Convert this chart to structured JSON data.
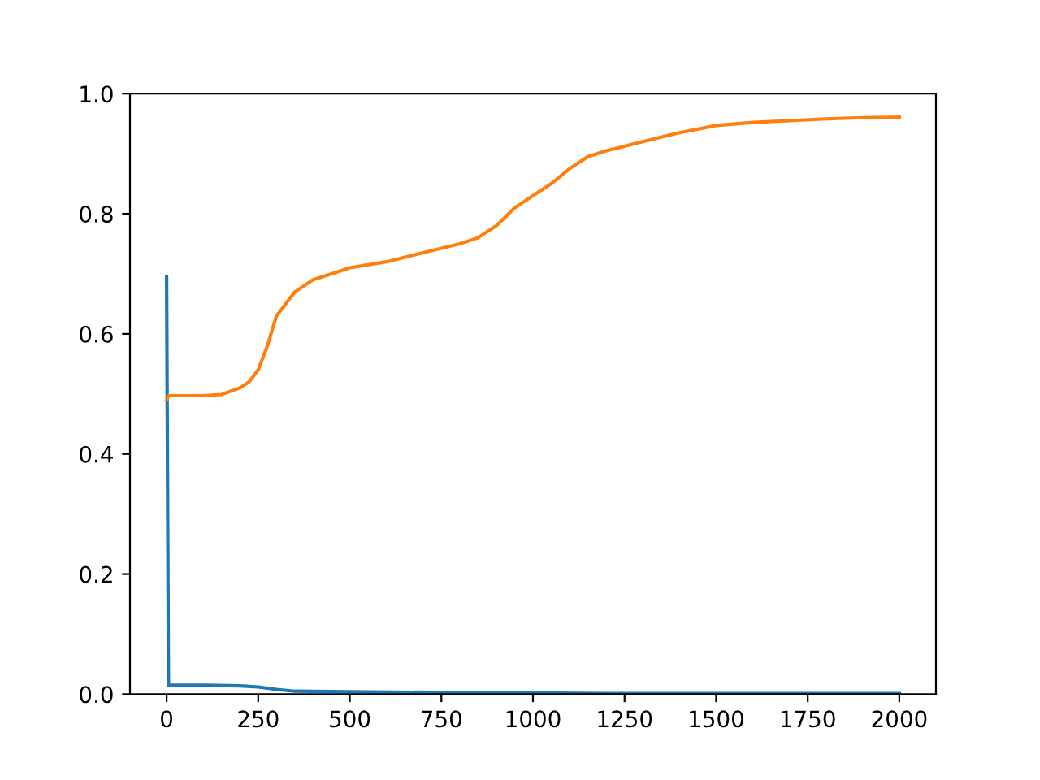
{
  "chart_data": {
    "type": "line",
    "series": [
      {
        "color": "#1f77b4",
        "x": [
          0,
          5,
          100,
          200,
          250,
          300,
          350,
          500,
          750,
          1000,
          1200,
          1500,
          2000
        ],
        "values": [
          0.695,
          0.015,
          0.015,
          0.014,
          0.012,
          0.008,
          0.005,
          0.004,
          0.003,
          0.002,
          0.001,
          0.001,
          0.001
        ]
      },
      {
        "color": "#ff7f0e",
        "x": [
          0,
          5,
          100,
          150,
          200,
          225,
          250,
          275,
          300,
          325,
          350,
          400,
          450,
          500,
          600,
          700,
          800,
          850,
          900,
          950,
          1000,
          1050,
          1100,
          1150,
          1200,
          1300,
          1400,
          1500,
          1600,
          1700,
          1800,
          1900,
          2000
        ],
        "values": [
          0.49,
          0.497,
          0.497,
          0.499,
          0.51,
          0.52,
          0.54,
          0.58,
          0.63,
          0.65,
          0.67,
          0.69,
          0.7,
          0.71,
          0.72,
          0.735,
          0.75,
          0.76,
          0.78,
          0.81,
          0.83,
          0.85,
          0.875,
          0.895,
          0.905,
          0.92,
          0.935,
          0.947,
          0.952,
          0.955,
          0.958,
          0.96,
          0.961
        ]
      }
    ],
    "xlim": [
      -100,
      2100
    ],
    "xticks": [
      0,
      250,
      500,
      750,
      1000,
      1250,
      1500,
      1750,
      2000
    ],
    "ylim": [
      0,
      1.0
    ],
    "yticks": [
      {
        "value": 0,
        "label": "0.0"
      },
      0.2,
      0.4,
      0.6,
      0.8,
      {
        "value": 1,
        "label": "1.0"
      }
    ],
    "grid": false,
    "legend": false
  }
}
